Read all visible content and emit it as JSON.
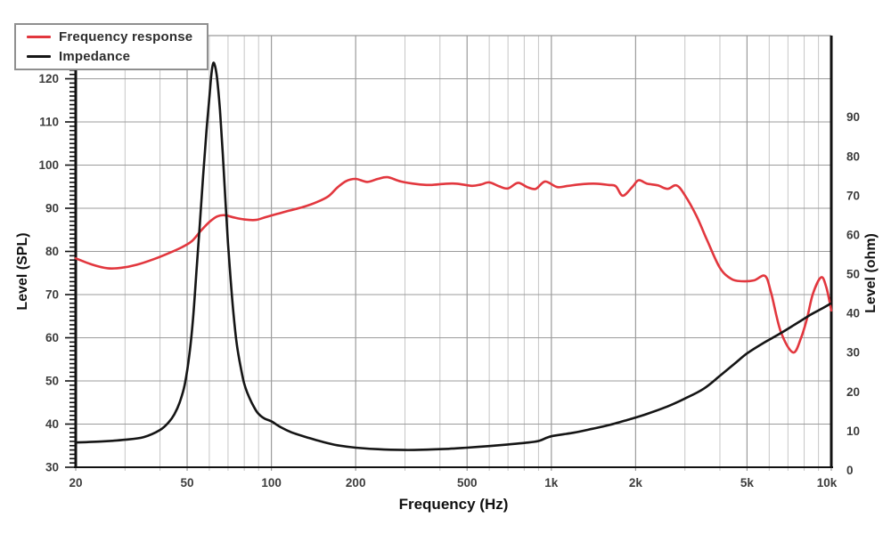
{
  "chart_data": {
    "type": "line",
    "title": "",
    "legend": {
      "position": "top-left",
      "entries": [
        "Frequency response",
        "Impedance"
      ]
    },
    "x_axis": {
      "label": "Frequency (Hz)",
      "scale": "log",
      "min": 20,
      "max": 10000,
      "major_ticks": [
        20,
        50,
        100,
        200,
        500,
        1000,
        2000,
        5000,
        10000
      ],
      "major_tick_labels": [
        "20",
        "50",
        "100",
        "200",
        "500",
        "1k",
        "2k",
        "5k",
        "10k"
      ],
      "minor_gridlines": [
        30,
        40,
        60,
        70,
        80,
        90,
        300,
        400,
        600,
        700,
        800,
        900,
        3000,
        4000,
        6000,
        7000,
        8000,
        9000
      ]
    },
    "y_left": {
      "label": "Level (SPL)",
      "min": 30,
      "max": 130,
      "tick_values": [
        30,
        40,
        50,
        60,
        70,
        80,
        90,
        100,
        110,
        120
      ],
      "minor_tick_step": 1,
      "grid": true
    },
    "y_right": {
      "label": "Level (ohm)",
      "min": 0,
      "max": 110,
      "tick_values": [
        0,
        10,
        20,
        30,
        40,
        50,
        60,
        70,
        80,
        90
      ],
      "grid": false
    },
    "series": [
      {
        "name": "Frequency response",
        "axis": "left",
        "color": "#e2373e",
        "width": 2.6,
        "points": [
          [
            20,
            78.4
          ],
          [
            23,
            76.9
          ],
          [
            26,
            76.1
          ],
          [
            29,
            76.2
          ],
          [
            33,
            76.9
          ],
          [
            38,
            78.2
          ],
          [
            43,
            79.6
          ],
          [
            48,
            81.0
          ],
          [
            52,
            82.4
          ],
          [
            56,
            84.8
          ],
          [
            60,
            86.8
          ],
          [
            64,
            88.1
          ],
          [
            68,
            88.4
          ],
          [
            73,
            87.9
          ],
          [
            80,
            87.4
          ],
          [
            88,
            87.3
          ],
          [
            96,
            88.0
          ],
          [
            105,
            88.7
          ],
          [
            115,
            89.4
          ],
          [
            130,
            90.3
          ],
          [
            145,
            91.4
          ],
          [
            160,
            92.8
          ],
          [
            172,
            94.8
          ],
          [
            185,
            96.3
          ],
          [
            200,
            96.8
          ],
          [
            220,
            96.1
          ],
          [
            240,
            96.8
          ],
          [
            260,
            97.2
          ],
          [
            290,
            96.2
          ],
          [
            330,
            95.6
          ],
          [
            370,
            95.4
          ],
          [
            420,
            95.7
          ],
          [
            460,
            95.7
          ],
          [
            520,
            95.2
          ],
          [
            560,
            95.5
          ],
          [
            600,
            96.0
          ],
          [
            650,
            95.1
          ],
          [
            700,
            94.6
          ],
          [
            760,
            95.9
          ],
          [
            820,
            94.9
          ],
          [
            880,
            94.5
          ],
          [
            950,
            96.2
          ],
          [
            1050,
            94.9
          ],
          [
            1150,
            95.2
          ],
          [
            1300,
            95.6
          ],
          [
            1450,
            95.7
          ],
          [
            1600,
            95.4
          ],
          [
            1700,
            95.1
          ],
          [
            1800,
            92.9
          ],
          [
            1950,
            95.0
          ],
          [
            2050,
            96.5
          ],
          [
            2200,
            95.7
          ],
          [
            2400,
            95.3
          ],
          [
            2600,
            94.5
          ],
          [
            2800,
            95.3
          ],
          [
            3000,
            93.0
          ],
          [
            3300,
            88.2
          ],
          [
            3600,
            82.6
          ],
          [
            4000,
            76.2
          ],
          [
            4400,
            73.6
          ],
          [
            4800,
            73.1
          ],
          [
            5300,
            73.3
          ],
          [
            5800,
            74.3
          ],
          [
            6100,
            70.3
          ],
          [
            6600,
            61.4
          ],
          [
            7300,
            56.6
          ],
          [
            7800,
            60.0
          ],
          [
            8200,
            64.6
          ],
          [
            8600,
            70.2
          ],
          [
            9200,
            74.0
          ],
          [
            9600,
            71.7
          ],
          [
            10000,
            66.3
          ]
        ]
      },
      {
        "name": "Impedance",
        "axis": "right",
        "color": "#151515",
        "width": 2.6,
        "points": [
          [
            20,
            6.3
          ],
          [
            25,
            6.6
          ],
          [
            30,
            7.0
          ],
          [
            35,
            7.7
          ],
          [
            40,
            9.5
          ],
          [
            43,
            11.5
          ],
          [
            45,
            13.5
          ],
          [
            47,
            16.5
          ],
          [
            49,
            21
          ],
          [
            51,
            29
          ],
          [
            52.5,
            38
          ],
          [
            54,
            50
          ],
          [
            55.5,
            62
          ],
          [
            57,
            74
          ],
          [
            58.5,
            85
          ],
          [
            60,
            94
          ],
          [
            61,
            100
          ],
          [
            62,
            103
          ],
          [
            63,
            102
          ],
          [
            64,
            99
          ],
          [
            65.5,
            91
          ],
          [
            67,
            80
          ],
          [
            68.5,
            68
          ],
          [
            70,
            57
          ],
          [
            71.5,
            48
          ],
          [
            73,
            40
          ],
          [
            75,
            32
          ],
          [
            77,
            27
          ],
          [
            79.5,
            22
          ],
          [
            82,
            19
          ],
          [
            85,
            16.5
          ],
          [
            89,
            14
          ],
          [
            94,
            12.5
          ],
          [
            100,
            11.7
          ],
          [
            108,
            10.2
          ],
          [
            118,
            8.9
          ],
          [
            133,
            7.7
          ],
          [
            150,
            6.6
          ],
          [
            172,
            5.6
          ],
          [
            200,
            5.0
          ],
          [
            240,
            4.6
          ],
          [
            300,
            4.4
          ],
          [
            360,
            4.5
          ],
          [
            430,
            4.7
          ],
          [
            500,
            5.0
          ],
          [
            600,
            5.4
          ],
          [
            700,
            5.8
          ],
          [
            800,
            6.2
          ],
          [
            900,
            6.7
          ],
          [
            1000,
            7.9
          ],
          [
            1200,
            8.8
          ],
          [
            1400,
            9.8
          ],
          [
            1600,
            10.7
          ],
          [
            1900,
            12.2
          ],
          [
            2200,
            13.6
          ],
          [
            2600,
            15.5
          ],
          [
            3000,
            17.5
          ],
          [
            3500,
            20.0
          ],
          [
            4000,
            23.3
          ],
          [
            4500,
            26.3
          ],
          [
            5000,
            29.0
          ],
          [
            5700,
            31.6
          ],
          [
            6500,
            33.9
          ],
          [
            7500,
            36.6
          ],
          [
            8500,
            39.0
          ],
          [
            9300,
            40.5
          ],
          [
            10000,
            41.8
          ]
        ]
      }
    ],
    "colors": {
      "grid_major": "#9b9b9b",
      "grid_minor": "#c6c6c6",
      "frame": "#9b9b9b",
      "spine": "#111111",
      "tick_text": "#3d3d3d"
    }
  }
}
